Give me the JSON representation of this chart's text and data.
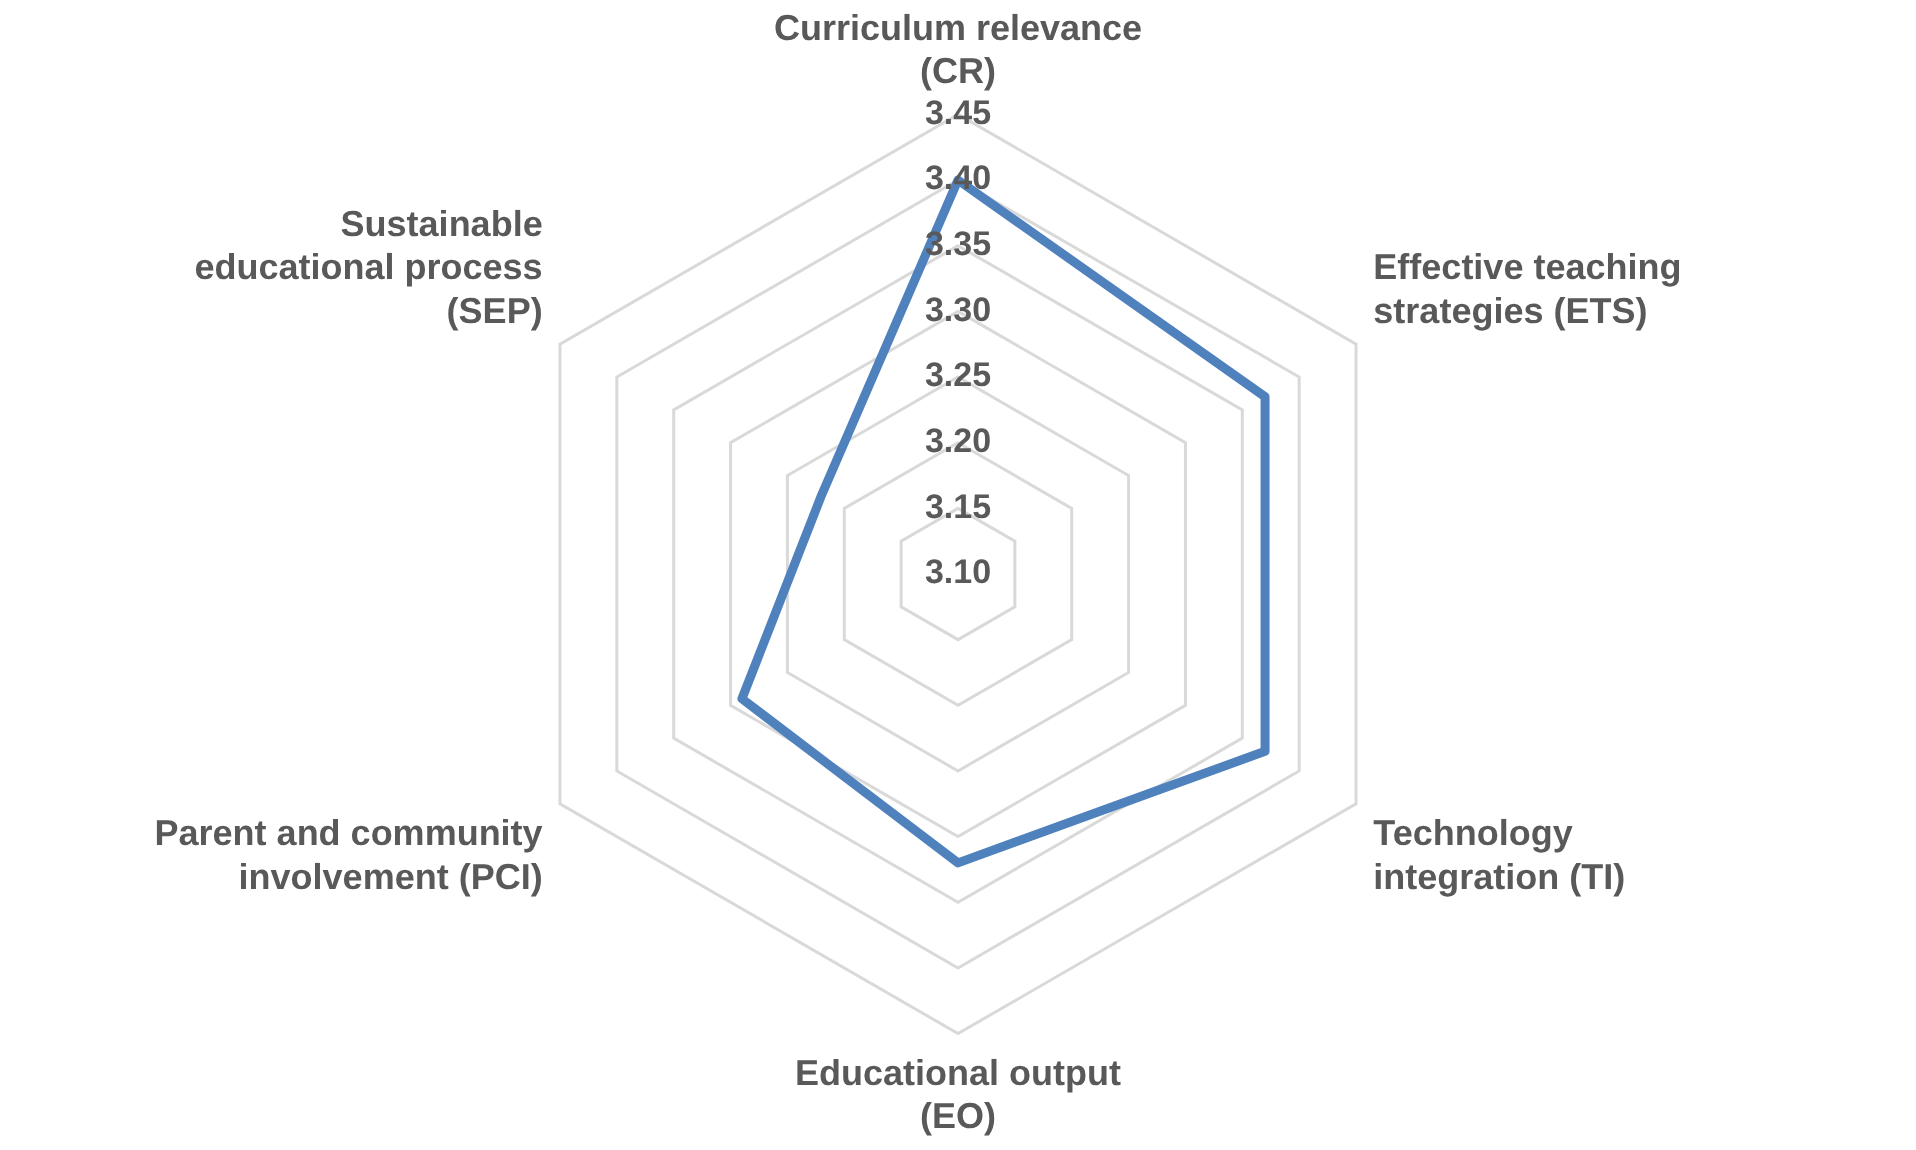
{
  "chart_data": {
    "type": "radar",
    "categories": [
      "Curriculum relevance (CR)",
      "Effective teaching strategies (ETS)",
      "Technology integration (TI)",
      "Educational output (EO)",
      "Parent and community involvement (PCI)",
      "Sustainable educational process (SEP)"
    ],
    "series": [
      {
        "color": "#4f81bd",
        "values": [
          3.4,
          3.37,
          3.37,
          3.32,
          3.29,
          3.22
        ]
      }
    ],
    "ylim": [
      3.1,
      3.45
    ],
    "yticks": [
      {
        "value": 3.1,
        "label": "3.10"
      },
      3.15,
      {
        "value": 3.2,
        "label": "3.20"
      },
      3.25,
      {
        "value": 3.3,
        "label": "3.30"
      },
      3.35,
      {
        "value": 3.4,
        "label": "3.40"
      },
      3.45
    ],
    "grid": true,
    "marker": "none"
  }
}
